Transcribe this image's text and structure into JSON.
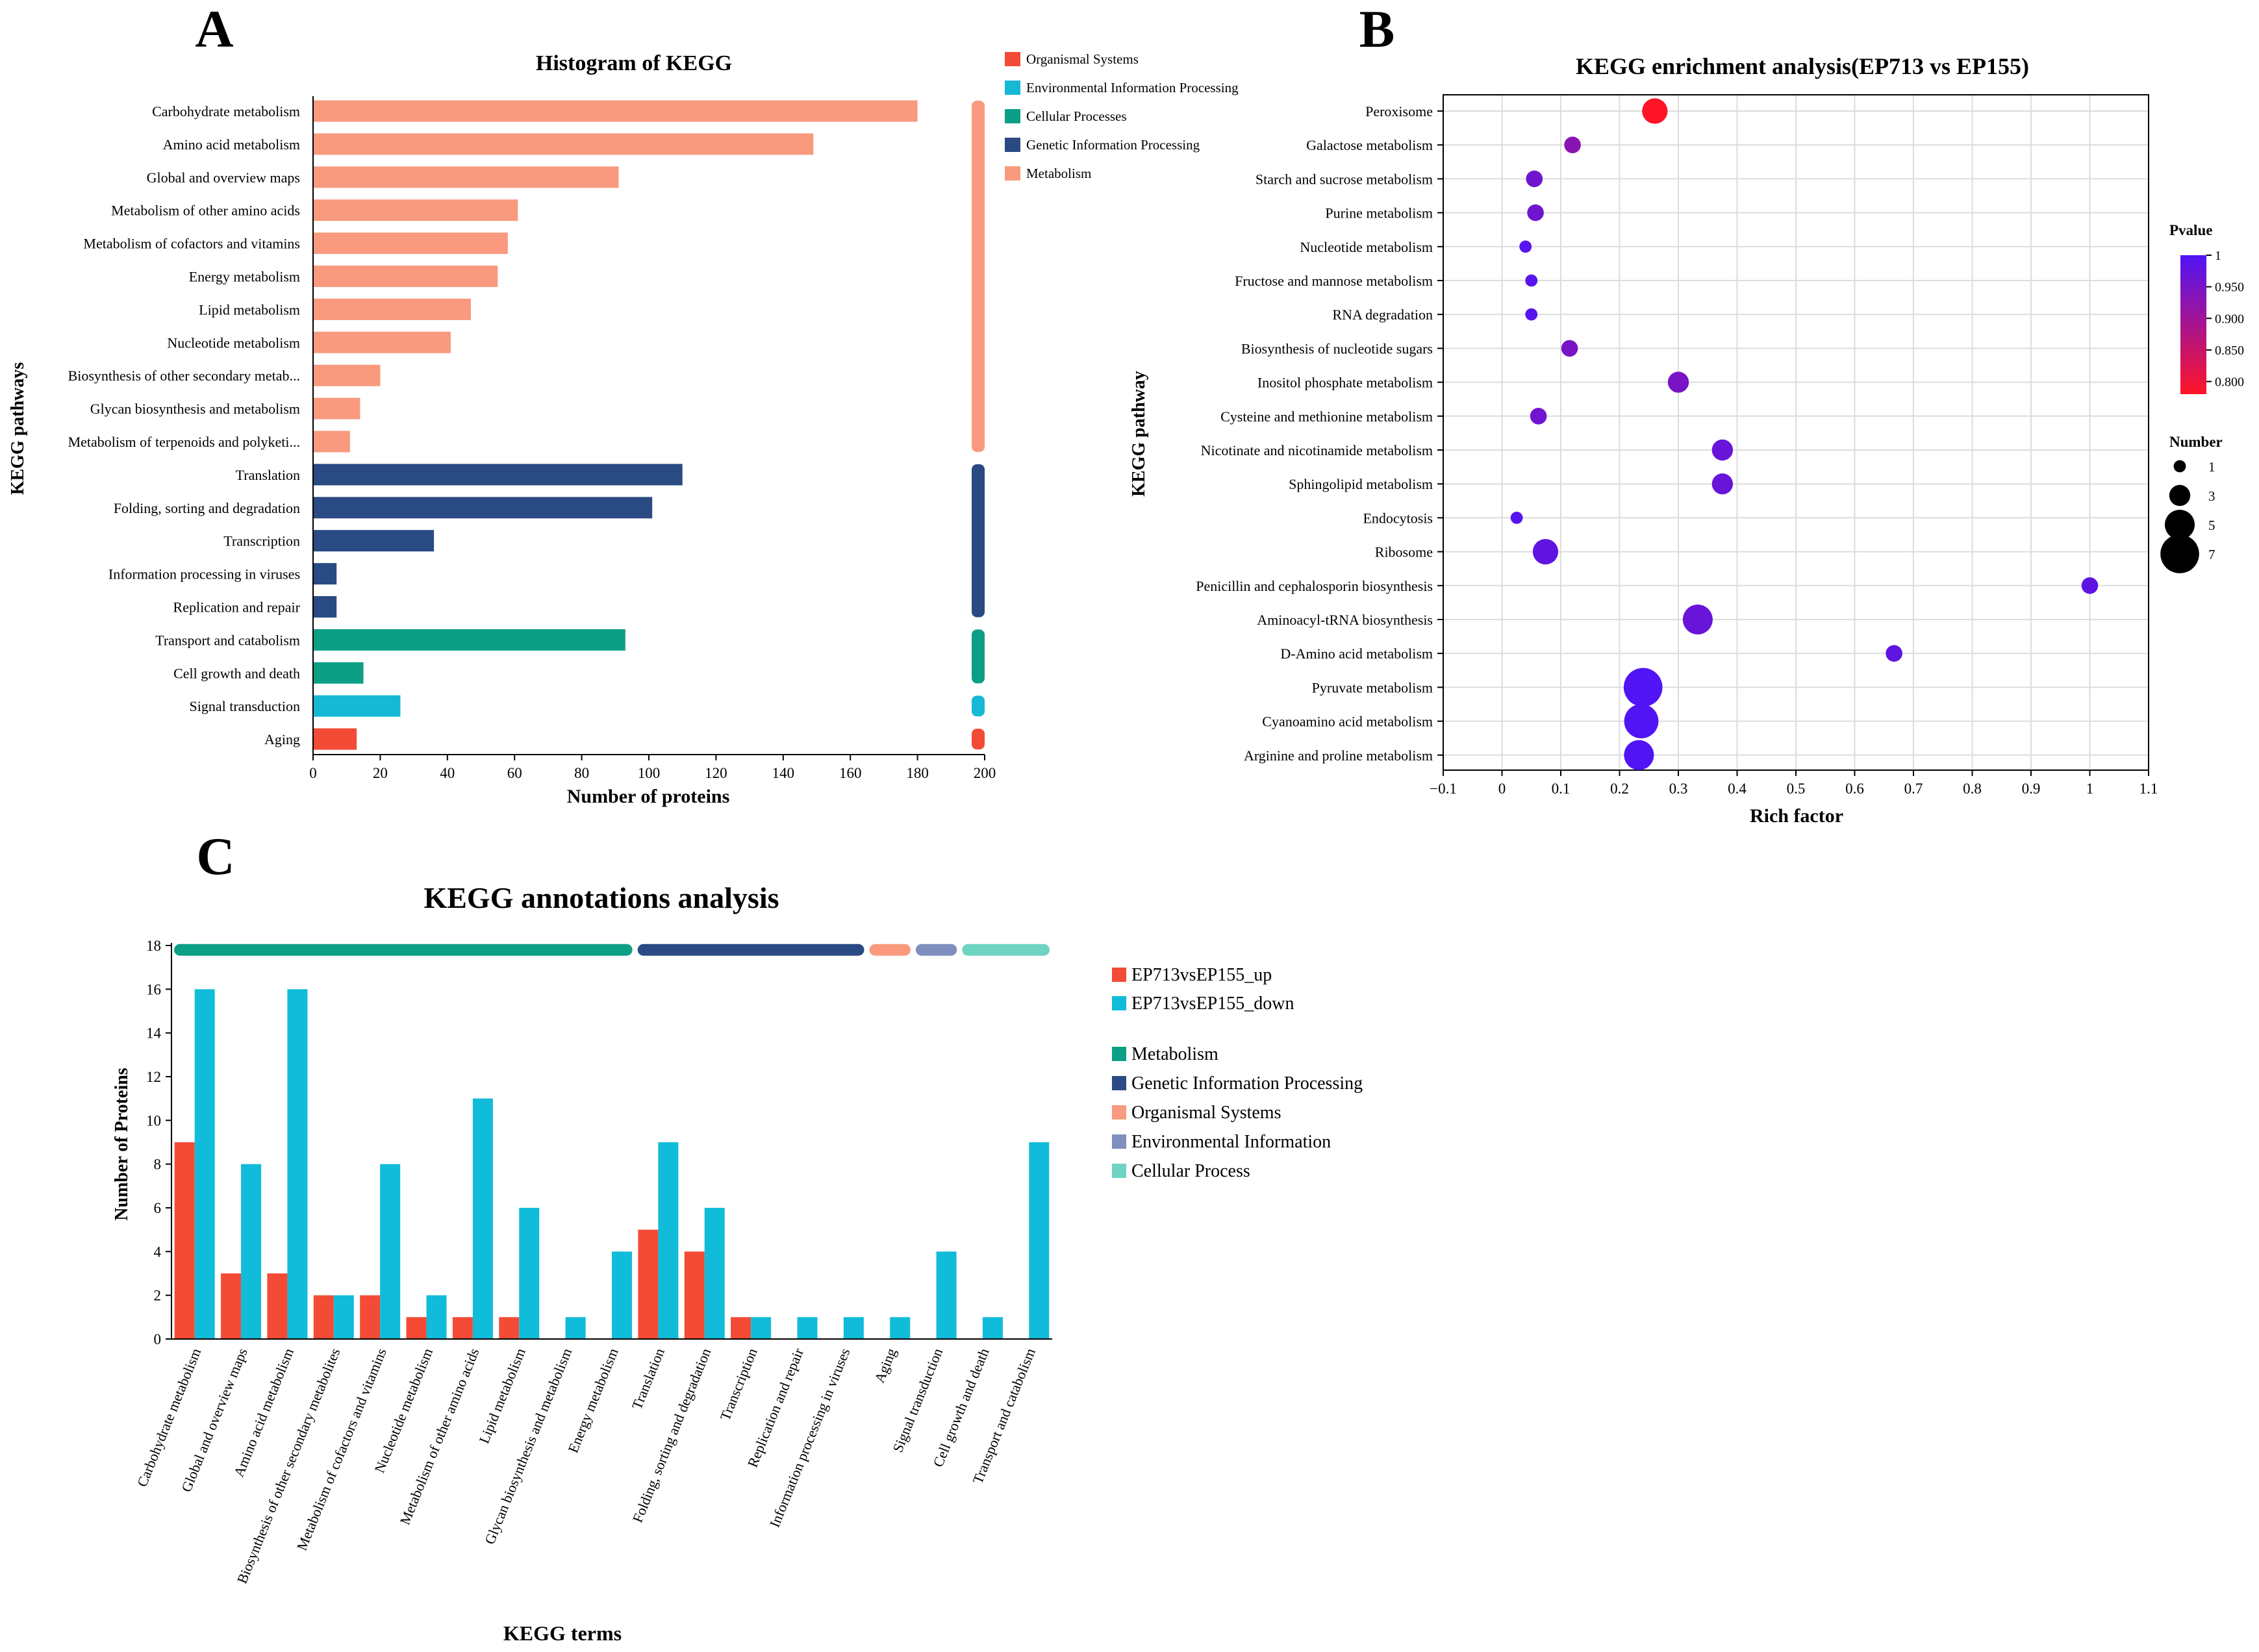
{
  "panel_letters": [
    "A",
    "B",
    "C"
  ],
  "colors": {
    "organismal": "#f44b36",
    "environmental": "#17b7d6",
    "cellular": "#0d9f86",
    "genetic": "#2a4a83",
    "metabolism": "#f99a7e",
    "c_up": "#f44b36",
    "c_down": "#10bcd9",
    "c_metabolism": "#0d9f86",
    "c_genetic": "#2a4a83",
    "c_organismal": "#f99a7e",
    "c_environmental": "#7f8fbf",
    "c_cellular": "#6fd3c2",
    "grid": "#dcdcdc",
    "axis": "#000000"
  },
  "chart_data": [
    {
      "id": "A",
      "type": "bar",
      "orientation": "horizontal",
      "title": "Histogram of KEGG",
      "xlabel": "Number of proteins",
      "ylabel": "KEGG pathways",
      "xlim": [
        0,
        200
      ],
      "xticks": [
        0,
        20,
        40,
        60,
        80,
        100,
        120,
        140,
        160,
        180,
        200
      ],
      "categories": [
        "Carbohydrate metabolism",
        "Amino acid metabolism",
        "Global and overview maps",
        "Metabolism of other amino acids",
        "Metabolism of cofactors and vitamins",
        "Energy metabolism",
        "Lipid metabolism",
        "Nucleotide metabolism",
        "Biosynthesis of other secondary metab...",
        "Glycan biosynthesis and metabolism",
        "Metabolism of terpenoids and polyketi...",
        "Translation",
        "Folding, sorting and degradation",
        "Transcription",
        "Information processing in viruses",
        "Replication and repair",
        "Transport and catabolism",
        "Cell growth and death",
        "Signal transduction",
        "Aging"
      ],
      "values": [
        180,
        149,
        91,
        61,
        58,
        55,
        47,
        41,
        20,
        14,
        11,
        110,
        101,
        36,
        7,
        7,
        93,
        15,
        26,
        13
      ],
      "groups": [
        "metabolism",
        "metabolism",
        "metabolism",
        "metabolism",
        "metabolism",
        "metabolism",
        "metabolism",
        "metabolism",
        "metabolism",
        "metabolism",
        "metabolism",
        "genetic",
        "genetic",
        "genetic",
        "genetic",
        "genetic",
        "cellular",
        "cellular",
        "environmental",
        "organismal"
      ],
      "legend": [
        {
          "name": "Organismal Systems",
          "key": "organismal"
        },
        {
          "name": "Environmental Information Processing",
          "key": "environmental"
        },
        {
          "name": "Cellular Processes",
          "key": "cellular"
        },
        {
          "name": "Genetic Information Processing",
          "key": "genetic"
        },
        {
          "name": "Metabolism",
          "key": "metabolism"
        }
      ],
      "legend_position": "top-right"
    },
    {
      "id": "B",
      "type": "scatter",
      "title": "KEGG enrichment analysis(EP713 vs EP155)",
      "xlabel": "Rich factor",
      "ylabel": "KEGG pathway",
      "xlim": [
        -0.1,
        1.1
      ],
      "xticks": [
        -0.1,
        0,
        0.1,
        0.2,
        0.3,
        0.4,
        0.5,
        0.6,
        0.7,
        0.8,
        0.9,
        1,
        1.1
      ],
      "grid": true,
      "categories": [
        "Peroxisome",
        "Galactose metabolism",
        "Starch and sucrose metabolism",
        "Purine metabolism",
        "Nucleotide metabolism",
        "Fructose and mannose metabolism",
        "RNA degradation",
        "Biosynthesis of nucleotide sugars",
        "Inositol phosphate metabolism",
        "Cysteine and methionine metabolism",
        "Nicotinate and nicotinamide metabolism",
        "Sphingolipid metabolism",
        "Endocytosis",
        "Ribosome",
        "Penicillin and cephalosporin biosynthesis",
        "Aminoacyl-tRNA biosynthesis",
        "D-Amino acid metabolism",
        "Pyruvate metabolism",
        "Cyanoamino acid metabolism",
        "Arginine and proline metabolism"
      ],
      "x": [
        0.26,
        0.12,
        0.055,
        0.057,
        0.04,
        0.05,
        0.05,
        0.115,
        0.3,
        0.062,
        0.375,
        0.375,
        0.025,
        0.074,
        1.0,
        0.333,
        0.667,
        0.24,
        0.237,
        0.233
      ],
      "number": [
        4,
        2,
        2,
        2,
        1,
        1,
        1,
        2,
        3,
        2,
        3,
        3,
        1,
        4,
        2,
        5,
        2,
        7,
        6,
        5
      ],
      "pvalue": [
        0.78,
        0.93,
        0.96,
        0.96,
        0.99,
        0.99,
        0.99,
        0.95,
        0.95,
        0.96,
        0.97,
        0.97,
        0.99,
        0.98,
        0.98,
        0.97,
        0.98,
        1.0,
        1.0,
        1.0
      ],
      "pvalue_legend": {
        "title": "Pvalue",
        "ticks": [
          "1",
          "0.950",
          "0.900",
          "0.850",
          "0.800"
        ],
        "range": [
          0.78,
          1.0
        ]
      },
      "size_legend": {
        "title": "Number",
        "values": [
          1,
          3,
          5,
          7
        ]
      }
    },
    {
      "id": "C",
      "type": "bar",
      "title": "KEGG annotations analysis",
      "xlabel": "KEGG terms",
      "ylabel": "Number of Proteins",
      "ylim": [
        0,
        18
      ],
      "yticks": [
        0,
        2,
        4,
        6,
        8,
        10,
        12,
        14,
        16,
        18
      ],
      "categories": [
        "Carbohydrate metabolism",
        "Global and overview maps",
        "Amino acid metabolism",
        "Biosynthesis of other secondary metabolites",
        "Metabolism of cofactors and vitamins",
        "Nucleotide metabolism",
        "Metabolism of other amino acids",
        "Lipid metabolism",
        "Glycan biosynthesis and metabolism",
        "Energy metabolism",
        "Translation",
        "Folding, sorting and degradation",
        "Transcription",
        "Replication and repair",
        "Information processing in viruses",
        "Aging",
        "Signal transduction",
        "Cell growth and death",
        "Transport and catabolism"
      ],
      "series": [
        {
          "name": "EP713vsEP155_up",
          "key": "c_up",
          "values": [
            9,
            3,
            3,
            2,
            2,
            1,
            1,
            1,
            0,
            0,
            5,
            4,
            1,
            0,
            0,
            0,
            0,
            0,
            0
          ]
        },
        {
          "name": "EP713vsEP155_down",
          "key": "c_down",
          "values": [
            16,
            8,
            16,
            2,
            8,
            2,
            11,
            6,
            1,
            4,
            9,
            6,
            1,
            1,
            1,
            1,
            4,
            1,
            9
          ]
        }
      ],
      "group_bands": [
        {
          "name": "Metabolism",
          "key": "c_metabolism",
          "start": 0,
          "end": 9
        },
        {
          "name": "Genetic Information Processing",
          "key": "c_genetic",
          "start": 10,
          "end": 14
        },
        {
          "name": "Organismal Systems",
          "key": "c_organismal",
          "start": 15,
          "end": 15
        },
        {
          "name": "Environmental Information",
          "key": "c_environmental",
          "start": 16,
          "end": 16
        },
        {
          "name": "Cellular Process",
          "key": "c_cellular",
          "start": 17,
          "end": 18
        }
      ],
      "legend_series": [
        "EP713vsEP155_up",
        "EP713vsEP155_down"
      ],
      "legend_groups": [
        "Metabolism",
        "Genetic Information Processing",
        "Organismal Systems",
        "Environmental Information",
        "Cellular Process"
      ],
      "legend_position": "right"
    }
  ]
}
